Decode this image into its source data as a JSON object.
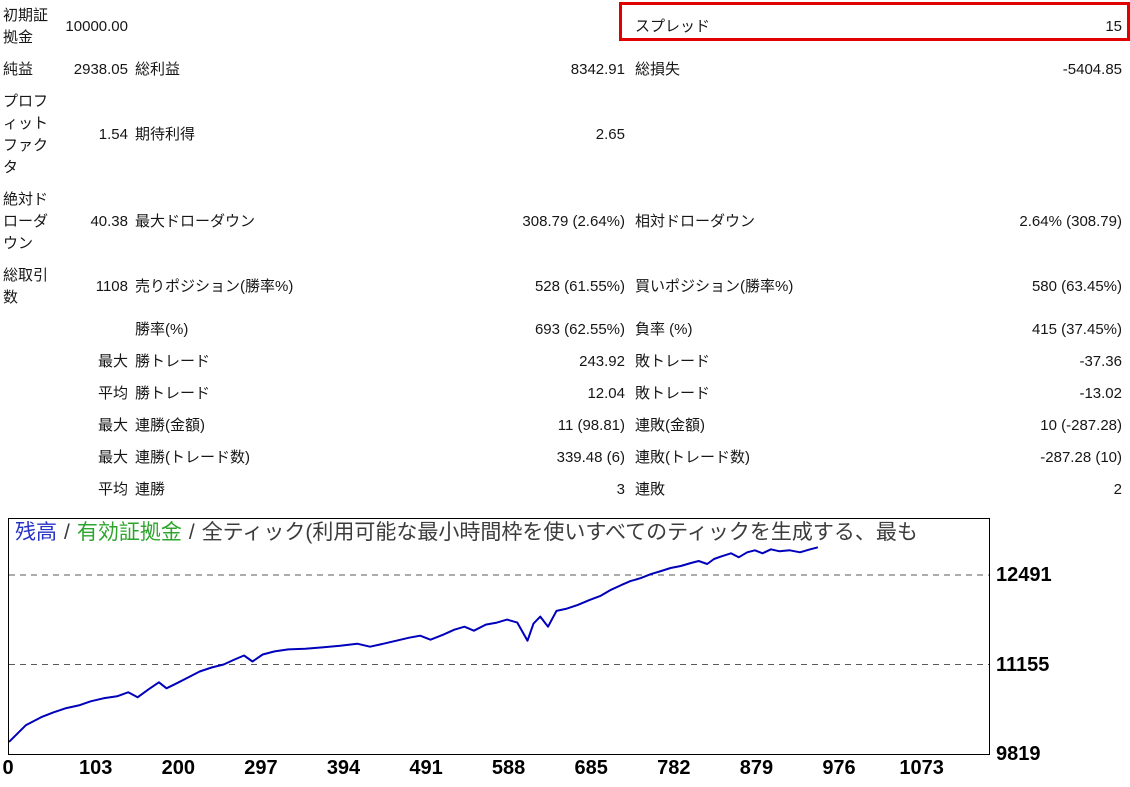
{
  "report": {
    "rows": [
      {
        "c1": "初期証拠金",
        "v1": "10000.00",
        "c2": "",
        "v2": "",
        "c3": "スプレッド",
        "v3": "15"
      },
      {
        "c1": "純益",
        "v1": "2938.05",
        "c2": "総利益",
        "v2": "8342.91",
        "c3": "総損失",
        "v3": "-5404.85"
      },
      {
        "c1": "プロフィットファクタ",
        "v1": "1.54",
        "c2": "期待利得",
        "v2": "2.65",
        "c3": "",
        "v3": ""
      },
      {
        "c1": "絶対ドローダウン",
        "v1": "40.38",
        "c2": "最大ドローダウン",
        "v2": "308.79 (2.64%)",
        "c3": "相対ドローダウン",
        "v3": "2.64% (308.79)"
      },
      {
        "c1": "総取引数",
        "v1": "1108",
        "c2": "売りポジション(勝率%)",
        "v2": "528 (61.55%)",
        "c3": "買いポジション(勝率%)",
        "v3": "580 (63.45%)"
      },
      {
        "c1": "",
        "v1": "",
        "c2": "勝率(%)",
        "v2": "693 (62.55%)",
        "c3": "負率 (%)",
        "v3": "415 (37.45%)"
      },
      {
        "c1": "",
        "v1": "最大",
        "c2": "勝トレード",
        "v2": "243.92",
        "c3": "敗トレード",
        "v3": "-37.36"
      },
      {
        "c1": "",
        "v1": "平均",
        "c2": "勝トレード",
        "v2": "12.04",
        "c3": "敗トレード",
        "v3": "-13.02"
      },
      {
        "c1": "",
        "v1": "最大",
        "c2": "連勝(金額)",
        "v2": "11 (98.81)",
        "c3": "連敗(金額)",
        "v3": "10 (-287.28)"
      },
      {
        "c1": "",
        "v1": "最大",
        "c2": "連勝(トレード数)",
        "v2": "339.48 (6)",
        "c3": "連敗(トレード数)",
        "v3": "-287.28 (10)"
      },
      {
        "c1": "",
        "v1": "平均",
        "c2": "連勝",
        "v2": "3",
        "c3": "連敗",
        "v3": "2"
      }
    ]
  },
  "annotation": {
    "target": "spread-row",
    "color": "#e00000"
  },
  "chart": {
    "legend": {
      "balance_label": "残高",
      "separator": "/",
      "equity_label": "有効証拠金",
      "mode_label": "全ティック(利用可能な最小時間枠を使いすべてのティックを生成する、最も",
      "balance_color": "#2633c4",
      "equity_color": "#2da52d"
    }
  },
  "chart_data": {
    "type": "line",
    "title": "残高 / 有効証拠金 / 全ティック(利用可能な最小時間枠を使いすべてのティックを生成する、最も",
    "xlabel": "",
    "ylabel": "",
    "legend_position": "top-left-inside",
    "grid": "horizontal-dashed",
    "x_axis": {
      "ticks": [
        0,
        103,
        200,
        297,
        394,
        491,
        588,
        685,
        782,
        879,
        976,
        1073
      ],
      "view_max": 1151
    },
    "y_axis": {
      "min": 9819,
      "gridline_top": 12491,
      "ticks": [
        12491,
        11155,
        9819
      ]
    },
    "y_gridlines": [
      12491,
      11155
    ],
    "series": [
      {
        "name": "残高",
        "color": "#0000bb",
        "points": [
          [
            0,
            10000
          ],
          [
            20,
            10250
          ],
          [
            38,
            10370
          ],
          [
            52,
            10440
          ],
          [
            66,
            10500
          ],
          [
            82,
            10545
          ],
          [
            96,
            10605
          ],
          [
            111,
            10650
          ],
          [
            127,
            10680
          ],
          [
            140,
            10740
          ],
          [
            151,
            10665
          ],
          [
            164,
            10785
          ],
          [
            176,
            10890
          ],
          [
            185,
            10800
          ],
          [
            197,
            10875
          ],
          [
            210,
            10960
          ],
          [
            224,
            11050
          ],
          [
            238,
            11110
          ],
          [
            252,
            11155
          ],
          [
            265,
            11230
          ],
          [
            276,
            11290
          ],
          [
            286,
            11200
          ],
          [
            298,
            11305
          ],
          [
            312,
            11350
          ],
          [
            328,
            11380
          ],
          [
            348,
            11390
          ],
          [
            368,
            11410
          ],
          [
            389,
            11435
          ],
          [
            409,
            11465
          ],
          [
            424,
            11420
          ],
          [
            440,
            11465
          ],
          [
            455,
            11510
          ],
          [
            470,
            11555
          ],
          [
            483,
            11585
          ],
          [
            495,
            11525
          ],
          [
            510,
            11600
          ],
          [
            523,
            11675
          ],
          [
            535,
            11720
          ],
          [
            546,
            11660
          ],
          [
            560,
            11750
          ],
          [
            573,
            11780
          ],
          [
            585,
            11825
          ],
          [
            597,
            11780
          ],
          [
            609,
            11510
          ],
          [
            616,
            11765
          ],
          [
            624,
            11870
          ],
          [
            633,
            11720
          ],
          [
            643,
            11955
          ],
          [
            654,
            11985
          ],
          [
            668,
            12045
          ],
          [
            682,
            12120
          ],
          [
            695,
            12180
          ],
          [
            707,
            12270
          ],
          [
            719,
            12340
          ],
          [
            730,
            12400
          ],
          [
            742,
            12445
          ],
          [
            754,
            12505
          ],
          [
            766,
            12550
          ],
          [
            777,
            12595
          ],
          [
            789,
            12625
          ],
          [
            801,
            12670
          ],
          [
            810,
            12700
          ],
          [
            820,
            12655
          ],
          [
            828,
            12730
          ],
          [
            837,
            12770
          ],
          [
            848,
            12815
          ],
          [
            857,
            12755
          ],
          [
            867,
            12830
          ],
          [
            876,
            12860
          ],
          [
            885,
            12815
          ],
          [
            895,
            12875
          ],
          [
            905,
            12845
          ],
          [
            917,
            12860
          ],
          [
            929,
            12830
          ],
          [
            941,
            12875
          ],
          [
            950,
            12905
          ]
        ]
      }
    ]
  }
}
